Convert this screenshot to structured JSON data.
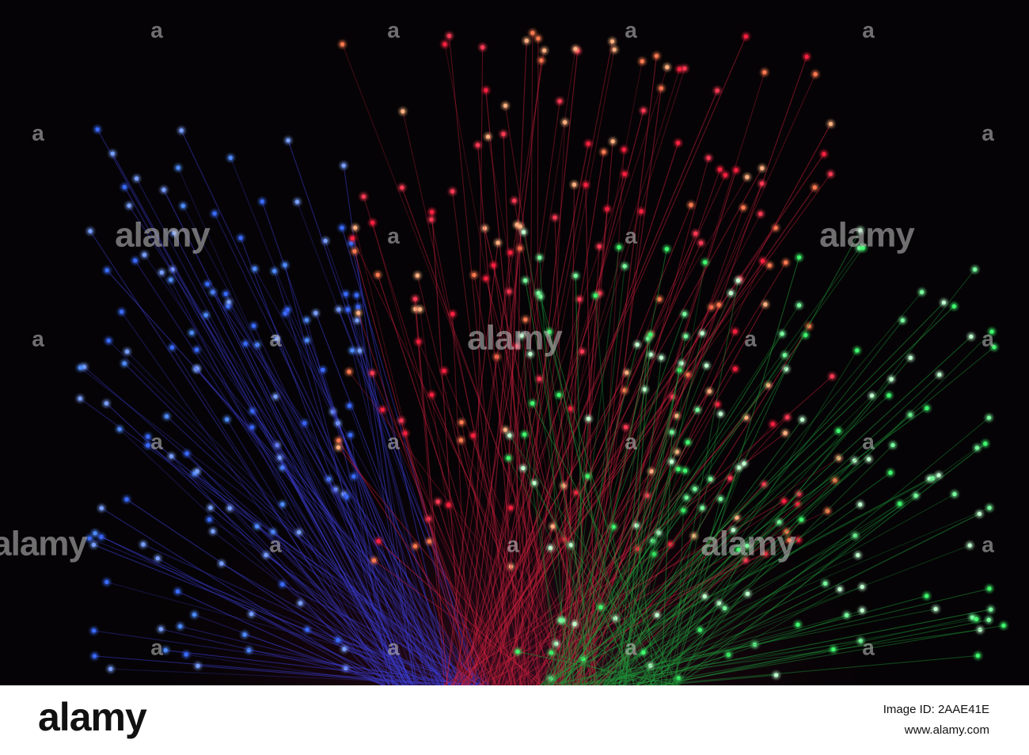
{
  "watermark": {
    "logo": "alamy",
    "letter": "a"
  },
  "footer": {
    "logo": "alamy",
    "image_id": "Image ID: 2AAE41E",
    "url": "www.alamy.com"
  }
}
